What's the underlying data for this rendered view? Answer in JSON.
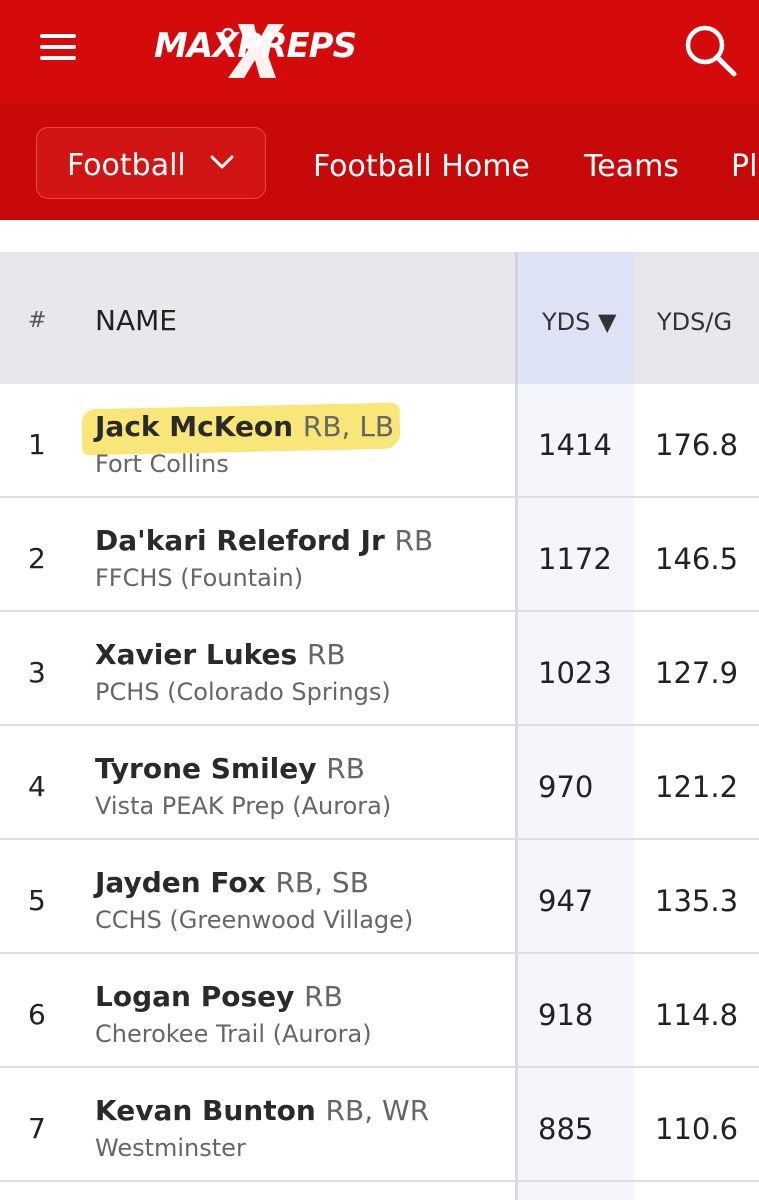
{
  "header": {
    "logo_text": "MAXPREPS",
    "brand_color": "#d50a0a"
  },
  "subnav": {
    "sport_selected": "Football",
    "links": [
      "Football Home",
      "Teams",
      "Pl"
    ]
  },
  "table": {
    "columns": [
      "#",
      "NAME",
      "YDS ▼",
      "YDS/G"
    ],
    "sorted_column": "YDS",
    "rows": [
      {
        "rank": "1",
        "name": "Jack McKeon",
        "pos": "RB, LB",
        "school": "Fort Collins",
        "yds": "1414",
        "ydsg": "176.8",
        "highlighted": true
      },
      {
        "rank": "2",
        "name": "Da'kari Releford Jr",
        "pos": "RB",
        "school": "FFCHS (Fountain)",
        "yds": "1172",
        "ydsg": "146.5"
      },
      {
        "rank": "3",
        "name": "Xavier Lukes",
        "pos": "RB",
        "school": "PCHS (Colorado Springs)",
        "yds": "1023",
        "ydsg": "127.9"
      },
      {
        "rank": "4",
        "name": "Tyrone Smiley",
        "pos": "RB",
        "school": "Vista PEAK Prep (Aurora)",
        "yds": "970",
        "ydsg": "121.2"
      },
      {
        "rank": "5",
        "name": "Jayden Fox",
        "pos": "RB, SB",
        "school": "CCHS (Greenwood Village)",
        "yds": "947",
        "ydsg": "135.3"
      },
      {
        "rank": "6",
        "name": "Logan Posey",
        "pos": "RB",
        "school": "Cherokee Trail (Aurora)",
        "yds": "918",
        "ydsg": "114.8"
      },
      {
        "rank": "7",
        "name": "Kevan Bunton",
        "pos": "RB, WR",
        "school": "Westminster",
        "yds": "885",
        "ydsg": "110.6"
      }
    ]
  }
}
